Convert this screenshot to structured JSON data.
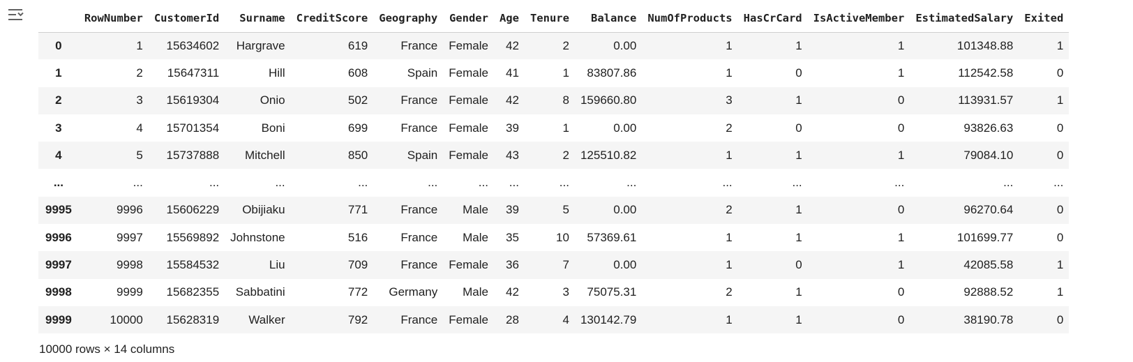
{
  "output": {
    "toggle_icon": "collapse-output-icon"
  },
  "dataframe": {
    "columns": [
      "",
      "RowNumber",
      "CustomerId",
      "Surname",
      "CreditScore",
      "Geography",
      "Gender",
      "Age",
      "Tenure",
      "Balance",
      "NumOfProducts",
      "HasCrCard",
      "IsActiveMember",
      "EstimatedSalary",
      "Exited"
    ],
    "rows": [
      [
        "0",
        "1",
        "15634602",
        "Hargrave",
        "619",
        "France",
        "Female",
        "42",
        "2",
        "0.00",
        "1",
        "1",
        "1",
        "101348.88",
        "1"
      ],
      [
        "1",
        "2",
        "15647311",
        "Hill",
        "608",
        "Spain",
        "Female",
        "41",
        "1",
        "83807.86",
        "1",
        "0",
        "1",
        "112542.58",
        "0"
      ],
      [
        "2",
        "3",
        "15619304",
        "Onio",
        "502",
        "France",
        "Female",
        "42",
        "8",
        "159660.80",
        "3",
        "1",
        "0",
        "113931.57",
        "1"
      ],
      [
        "3",
        "4",
        "15701354",
        "Boni",
        "699",
        "France",
        "Female",
        "39",
        "1",
        "0.00",
        "2",
        "0",
        "0",
        "93826.63",
        "0"
      ],
      [
        "4",
        "5",
        "15737888",
        "Mitchell",
        "850",
        "Spain",
        "Female",
        "43",
        "2",
        "125510.82",
        "1",
        "1",
        "1",
        "79084.10",
        "0"
      ],
      [
        "...",
        "...",
        "...",
        "...",
        "...",
        "...",
        "...",
        "...",
        "...",
        "...",
        "...",
        "...",
        "...",
        "...",
        "..."
      ],
      [
        "9995",
        "9996",
        "15606229",
        "Obijiaku",
        "771",
        "France",
        "Male",
        "39",
        "5",
        "0.00",
        "2",
        "1",
        "0",
        "96270.64",
        "0"
      ],
      [
        "9996",
        "9997",
        "15569892",
        "Johnstone",
        "516",
        "France",
        "Male",
        "35",
        "10",
        "57369.61",
        "1",
        "1",
        "1",
        "101699.77",
        "0"
      ],
      [
        "9997",
        "9998",
        "15584532",
        "Liu",
        "709",
        "France",
        "Female",
        "36",
        "7",
        "0.00",
        "1",
        "0",
        "1",
        "42085.58",
        "1"
      ],
      [
        "9998",
        "9999",
        "15682355",
        "Sabbatini",
        "772",
        "Germany",
        "Male",
        "42",
        "3",
        "75075.31",
        "2",
        "1",
        "0",
        "92888.52",
        "1"
      ],
      [
        "9999",
        "10000",
        "15628319",
        "Walker",
        "792",
        "France",
        "Female",
        "28",
        "4",
        "130142.79",
        "1",
        "1",
        "0",
        "38190.78",
        "0"
      ]
    ],
    "summary": "10000 rows × 14 columns"
  }
}
